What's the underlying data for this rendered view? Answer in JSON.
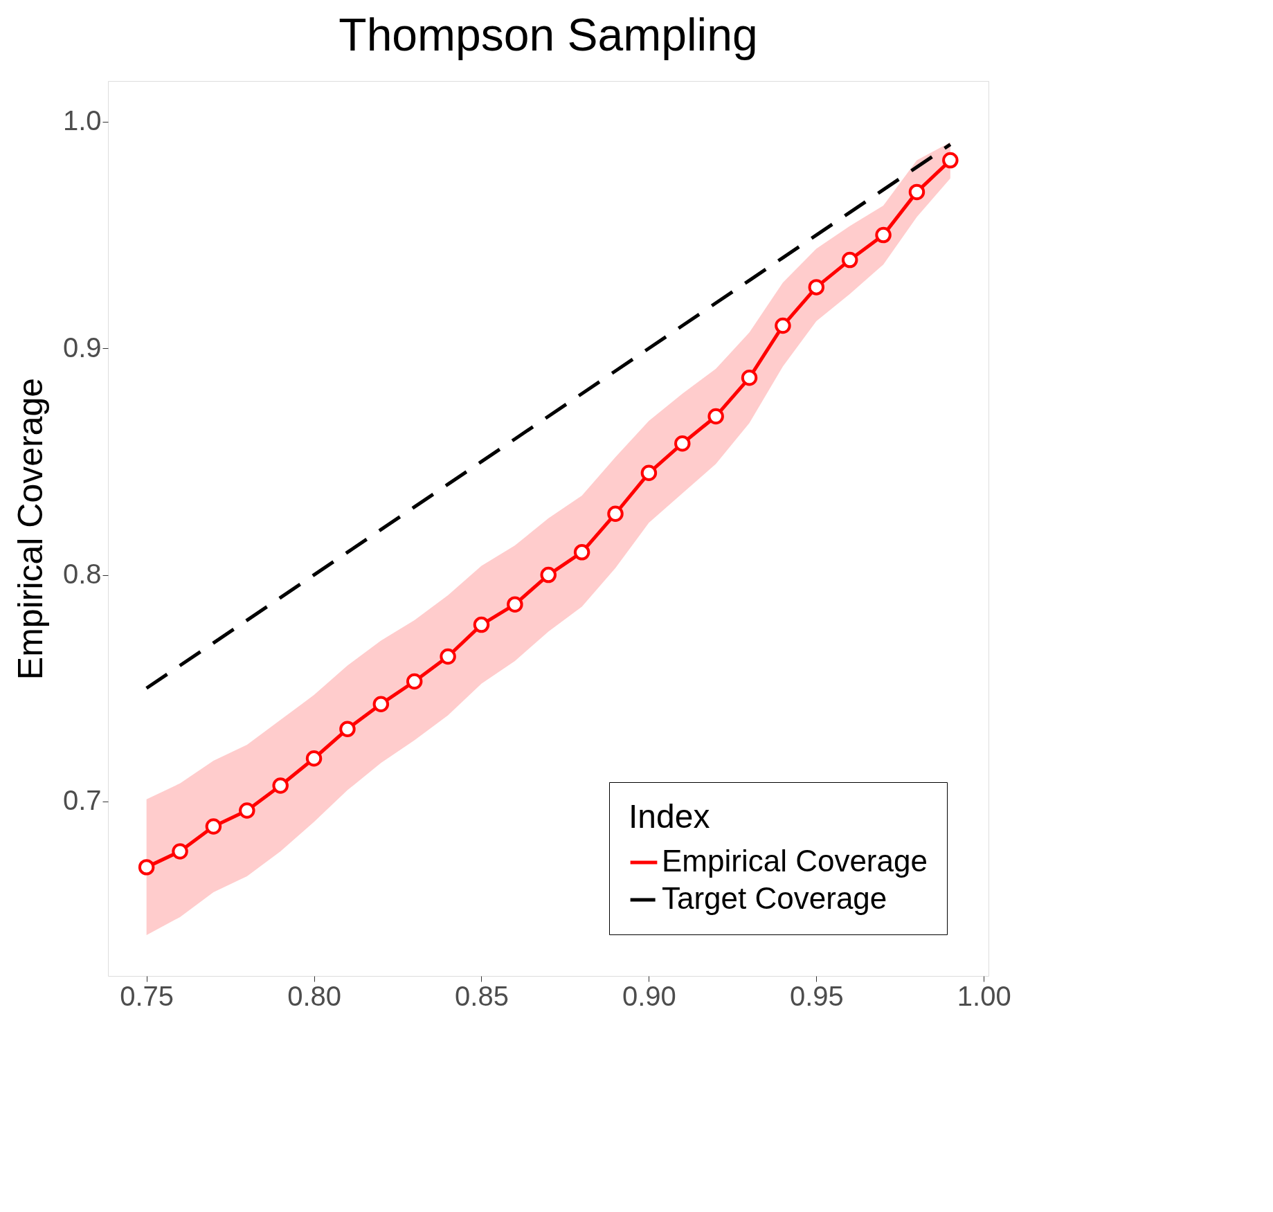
{
  "chart_data": {
    "type": "line",
    "title": "Thompson Sampling",
    "ylabel": "Empirical Coverage",
    "legend_title": "Index",
    "legend": "bottom right",
    "grid": false,
    "x": [
      0.75,
      0.76,
      0.77,
      0.78,
      0.79,
      0.8,
      0.81,
      0.82,
      0.83,
      0.84,
      0.85,
      0.86,
      0.87,
      0.88,
      0.89,
      0.9,
      0.91,
      0.92,
      0.93,
      0.94,
      0.95,
      0.96,
      0.97,
      0.98,
      0.99
    ],
    "xlim": [
      0.7385,
      1.0014
    ],
    "xticks": [
      {
        "value": 0.75,
        "label": "0.75"
      },
      {
        "value": 0.8,
        "label": "0.80"
      },
      {
        "value": 0.85,
        "label": "0.85"
      },
      {
        "value": 0.9,
        "label": "0.90"
      },
      {
        "value": 0.95,
        "label": "0.95"
      },
      {
        "value": 1.0,
        "label": "1.00"
      }
    ],
    "ylim": [
      0.623,
      1.018
    ],
    "yticks": [
      {
        "value": 0.7,
        "label": "0.7"
      },
      {
        "value": 0.8,
        "label": "0.8"
      },
      {
        "value": 0.9,
        "label": "0.9"
      },
      {
        "value": 1.0,
        "label": "1.0"
      }
    ],
    "series": [
      {
        "name": "Empirical Coverage",
        "color": "#ff0000",
        "marker": "circle",
        "line_style": "solid",
        "values": [
          0.671,
          0.678,
          0.689,
          0.696,
          0.707,
          0.719,
          0.732,
          0.743,
          0.753,
          0.764,
          0.778,
          0.787,
          0.8,
          0.81,
          0.827,
          0.845,
          0.858,
          0.87,
          0.887,
          0.91,
          0.927,
          0.939,
          0.95,
          0.969,
          0.983
        ],
        "lower": [
          0.641,
          0.649,
          0.66,
          0.667,
          0.678,
          0.691,
          0.705,
          0.717,
          0.727,
          0.738,
          0.752,
          0.762,
          0.775,
          0.786,
          0.803,
          0.823,
          0.836,
          0.849,
          0.867,
          0.892,
          0.912,
          0.924,
          0.937,
          0.958,
          0.975
        ],
        "upper": [
          0.701,
          0.708,
          0.718,
          0.725,
          0.736,
          0.747,
          0.76,
          0.771,
          0.78,
          0.791,
          0.804,
          0.813,
          0.825,
          0.835,
          0.852,
          0.868,
          0.88,
          0.891,
          0.907,
          0.929,
          0.944,
          0.954,
          0.963,
          0.983,
          0.991
        ]
      },
      {
        "name": "Target Coverage",
        "color": "#000000",
        "marker": "none",
        "line_style": "dashed",
        "values": [
          0.75,
          0.76,
          0.77,
          0.78,
          0.79,
          0.8,
          0.81,
          0.82,
          0.83,
          0.84,
          0.85,
          0.86,
          0.87,
          0.88,
          0.89,
          0.9,
          0.91,
          0.92,
          0.93,
          0.94,
          0.95,
          0.96,
          0.97,
          0.98,
          0.99
        ]
      }
    ]
  }
}
